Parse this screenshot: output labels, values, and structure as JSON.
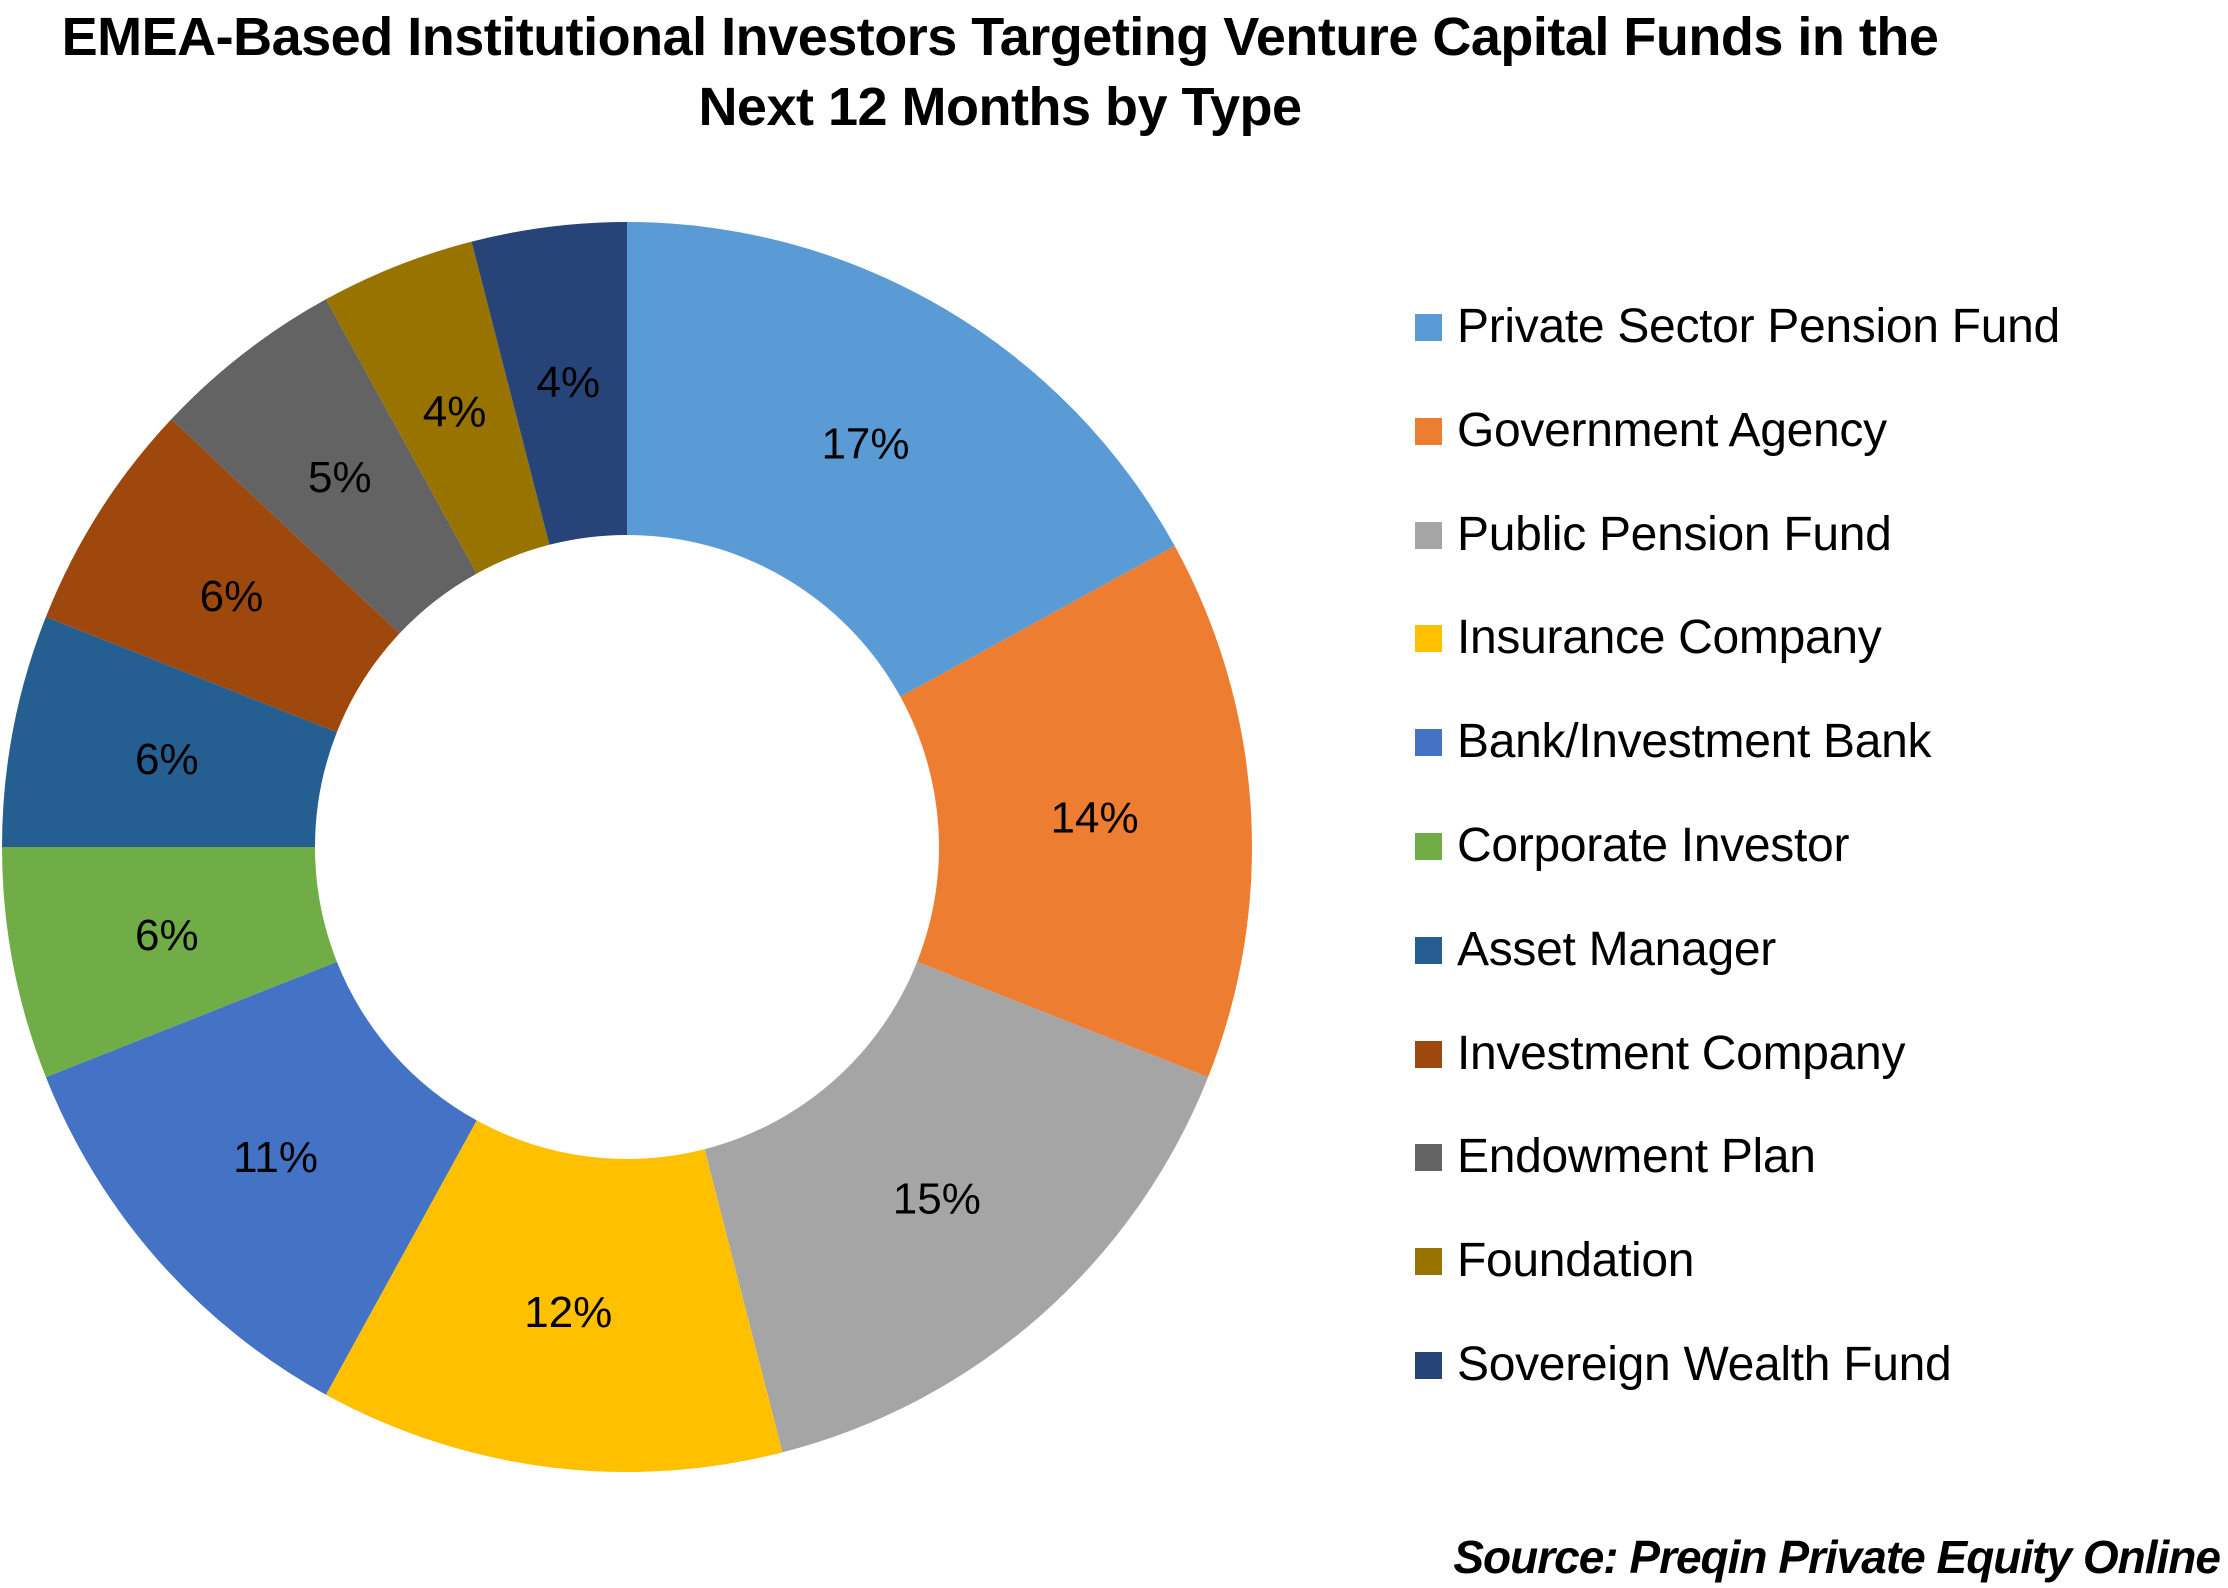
{
  "title": {
    "line1": "EMEA-Based Institutional Investors Targeting Venture Capital Funds in the",
    "line2": "Next 12 Months by Type"
  },
  "source": "Source: Preqin Private Equity Online",
  "chart_data": {
    "type": "pie",
    "variant": "donut",
    "title": "EMEA-Based Institutional Investors Targeting Venture Capital Funds in the Next 12 Months by Type",
    "categories": [
      "Private Sector Pension Fund",
      "Government Agency",
      "Public Pension Fund",
      "Insurance Company",
      "Bank/Investment Bank",
      "Corporate Investor",
      "Asset Manager",
      "Investment Company",
      "Endowment Plan",
      "Foundation",
      "Sovereign Wealth Fund"
    ],
    "values": [
      17,
      14,
      15,
      12,
      11,
      6,
      6,
      6,
      5,
      4,
      4
    ],
    "labels": [
      "17%",
      "14%",
      "15%",
      "12%",
      "11%",
      "6%",
      "6%",
      "6%",
      "5%",
      "4%",
      "4%"
    ],
    "colors": [
      "#5B9BD5",
      "#ED7D31",
      "#A5A5A5",
      "#FFC000",
      "#4472C4",
      "#70AD47",
      "#255E91",
      "#9E480E",
      "#636363",
      "#997300",
      "#264478"
    ],
    "unit": "%",
    "legend_position": "right",
    "start_angle_deg": 0,
    "direction": "clockwise",
    "source": "Source: Preqin Private Equity Online"
  },
  "legend": {
    "items": [
      {
        "label": "Private Sector Pension Fund",
        "color": "#5B9BD5"
      },
      {
        "label": "Government Agency",
        "color": "#ED7D31"
      },
      {
        "label": "Public Pension Fund",
        "color": "#A5A5A5"
      },
      {
        "label": "Insurance Company",
        "color": "#FFC000"
      },
      {
        "label": "Bank/Investment Bank",
        "color": "#4472C4"
      },
      {
        "label": "Corporate Investor",
        "color": "#70AD47"
      },
      {
        "label": "Asset Manager",
        "color": "#255E91"
      },
      {
        "label": "Investment Company",
        "color": "#9E480E"
      },
      {
        "label": "Endowment Plan",
        "color": "#636363"
      },
      {
        "label": "Foundation",
        "color": "#997300"
      },
      {
        "label": "Sovereign Wealth Fund",
        "color": "#264478"
      }
    ]
  }
}
